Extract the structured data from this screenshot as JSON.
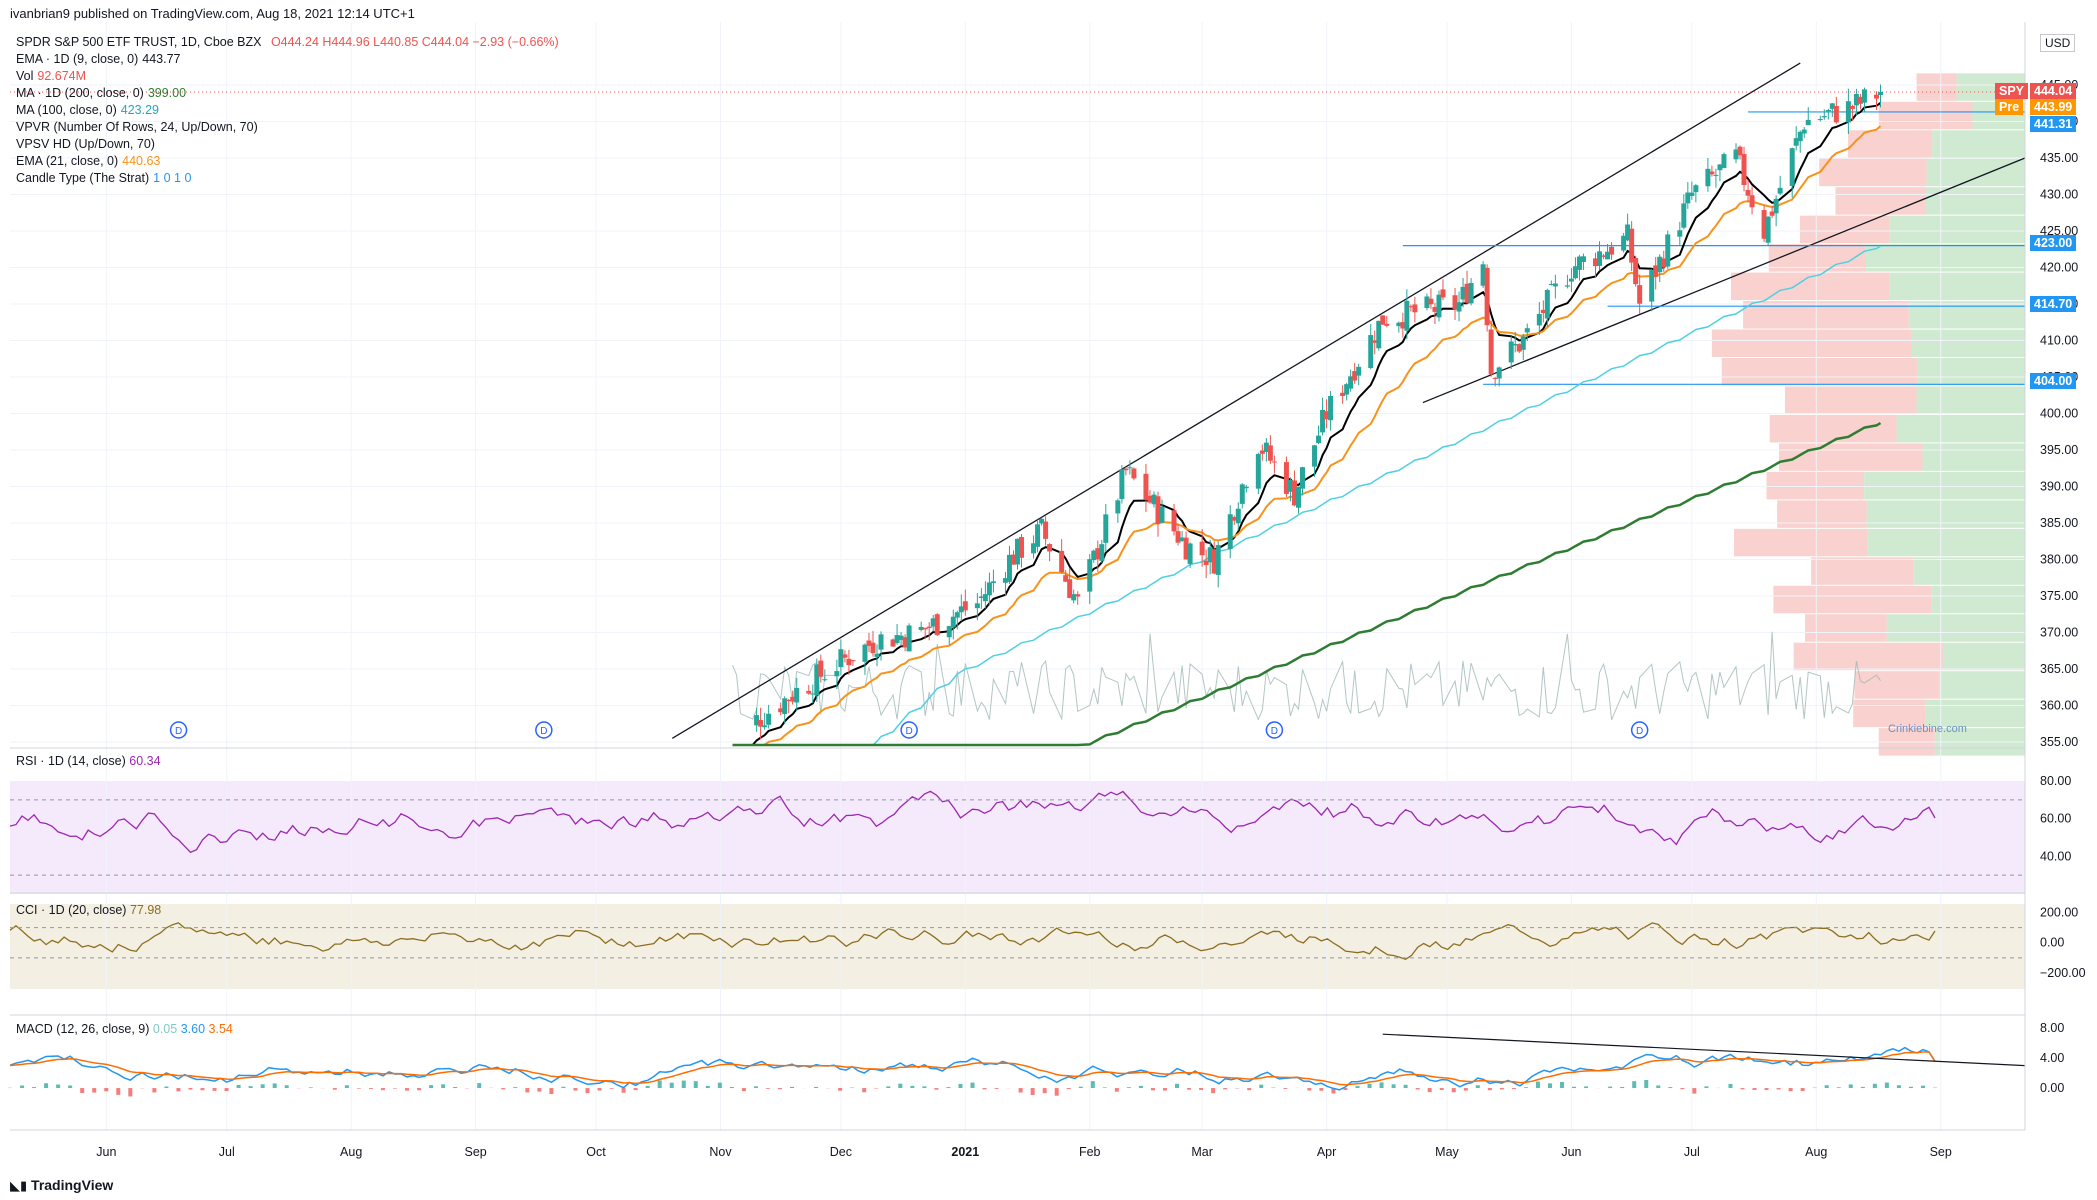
{
  "header": {
    "published": "ivanbrian9 published on TradingView.com, Aug 18, 2021 12:14 UTC+1"
  },
  "legend": {
    "title": "SPDR S&P 500 ETF TRUST, 1D, Cboe BZX",
    "ohlc": "O444.24  H444.96  L440.85  C444.04  −2.93 (−0.66%)",
    "ema9_label": "EMA · 1D (9, close, 0)",
    "ema9_value": "443.77",
    "vol_label": "Vol",
    "vol_value": "92.674M",
    "ma200_label": "MA · 1D (200, close, 0)",
    "ma200_value": "399.00",
    "ma100_label": "MA (100, close, 0)",
    "ma100_value": "423.29",
    "vpvr_label": "VPVR (Number Of Rows, 24, Up/Down, 70)",
    "vpsv_label": "VPSV HD (Up/Down, 70)",
    "ema21_label": "EMA (21, close, 0)",
    "ema21_value": "440.63",
    "strat_label": "Candle Type (The Strat)",
    "strat_value": "1  0  1  0"
  },
  "price_tags": {
    "spy_label": "SPY",
    "spy_value": "444.04",
    "pre_label": "Pre",
    "pre_value": "443.99",
    "level1": "441.31",
    "level2": "423.00",
    "level3": "414.70",
    "level4": "404.00",
    "currency": "USD"
  },
  "watermark": "Crinkiebine.com",
  "rsi_label": "RSI · 1D (14, close)",
  "rsi_value": "60.34",
  "cci_label": "CCI · 1D (20, close)",
  "cci_value": "77.98",
  "macd_label": "MACD (12, 26, close, 9)",
  "macd_v1": "0.05",
  "macd_v2": "3.60",
  "macd_v3": "3.54",
  "logo_text": "TradingView",
  "colors": {
    "up": "#26a69a",
    "down": "#ef5350",
    "ema9": "#000000",
    "ema21": "#f7931a",
    "ma100": "#4dd0e1",
    "ma200": "#2e7d32",
    "rsi": "#9c27b0",
    "cci": "#8d6e1f",
    "macd": "#2196f3",
    "signal": "#ff6d00"
  },
  "chart_data": {
    "type": "candlestick",
    "symbol": "SPY",
    "x_ticks": [
      "Jun",
      "Jul",
      "Aug",
      "Sep",
      "Oct",
      "Nov",
      "Dec",
      "2021",
      "Feb",
      "Mar",
      "Apr",
      "May",
      "Jun",
      "Jul",
      "Aug",
      "Sep"
    ],
    "price_axis_ticks": [
      355,
      360,
      365,
      370,
      375,
      380,
      385,
      390,
      395,
      400,
      405,
      410,
      415,
      420,
      425,
      430,
      435,
      440,
      445
    ],
    "ylim": [
      353,
      448
    ],
    "horizontal_levels": [
      441.31,
      423.0,
      414.7,
      404.0
    ],
    "close_series_anchors": {
      "x": [
        "2020-11-04",
        "2020-11-10",
        "2020-11-20",
        "2020-12-01",
        "2020-12-10",
        "2020-12-20",
        "2021-01-04",
        "2021-01-12",
        "2021-01-20",
        "2021-01-29",
        "2021-02-10",
        "2021-02-25",
        "2021-03-04",
        "2021-03-15",
        "2021-03-24",
        "2021-04-01",
        "2021-04-15",
        "2021-05-04",
        "2021-05-10",
        "2021-05-12",
        "2021-05-20",
        "2021-06-01",
        "2021-06-15",
        "2021-06-18",
        "2021-07-01",
        "2021-07-12",
        "2021-07-19",
        "2021-07-29",
        "2021-08-10",
        "2021-08-17"
      ],
      "close": [
        353,
        358,
        362,
        366,
        369,
        370,
        374,
        380,
        384,
        374,
        392,
        382,
        380,
        396,
        389,
        400,
        413,
        415,
        421,
        406,
        410,
        420,
        424,
        415,
        430,
        435,
        425,
        440,
        442,
        444.04
      ]
    },
    "rsi": {
      "ylim": [
        20,
        80
      ],
      "ticks": [
        40,
        60,
        80
      ],
      "bands": [
        30,
        70
      ],
      "last": 60.34
    },
    "cci": {
      "ylim": [
        -300,
        250
      ],
      "ticks": [
        -200,
        0,
        200
      ],
      "bands": [
        -100,
        100
      ],
      "last": 77.98
    },
    "macd": {
      "ylim": [
        -2,
        9.5
      ],
      "ticks": [
        0,
        4,
        8
      ],
      "last": {
        "hist": 0.05,
        "macd": 3.6,
        "signal": 3.54
      }
    }
  }
}
